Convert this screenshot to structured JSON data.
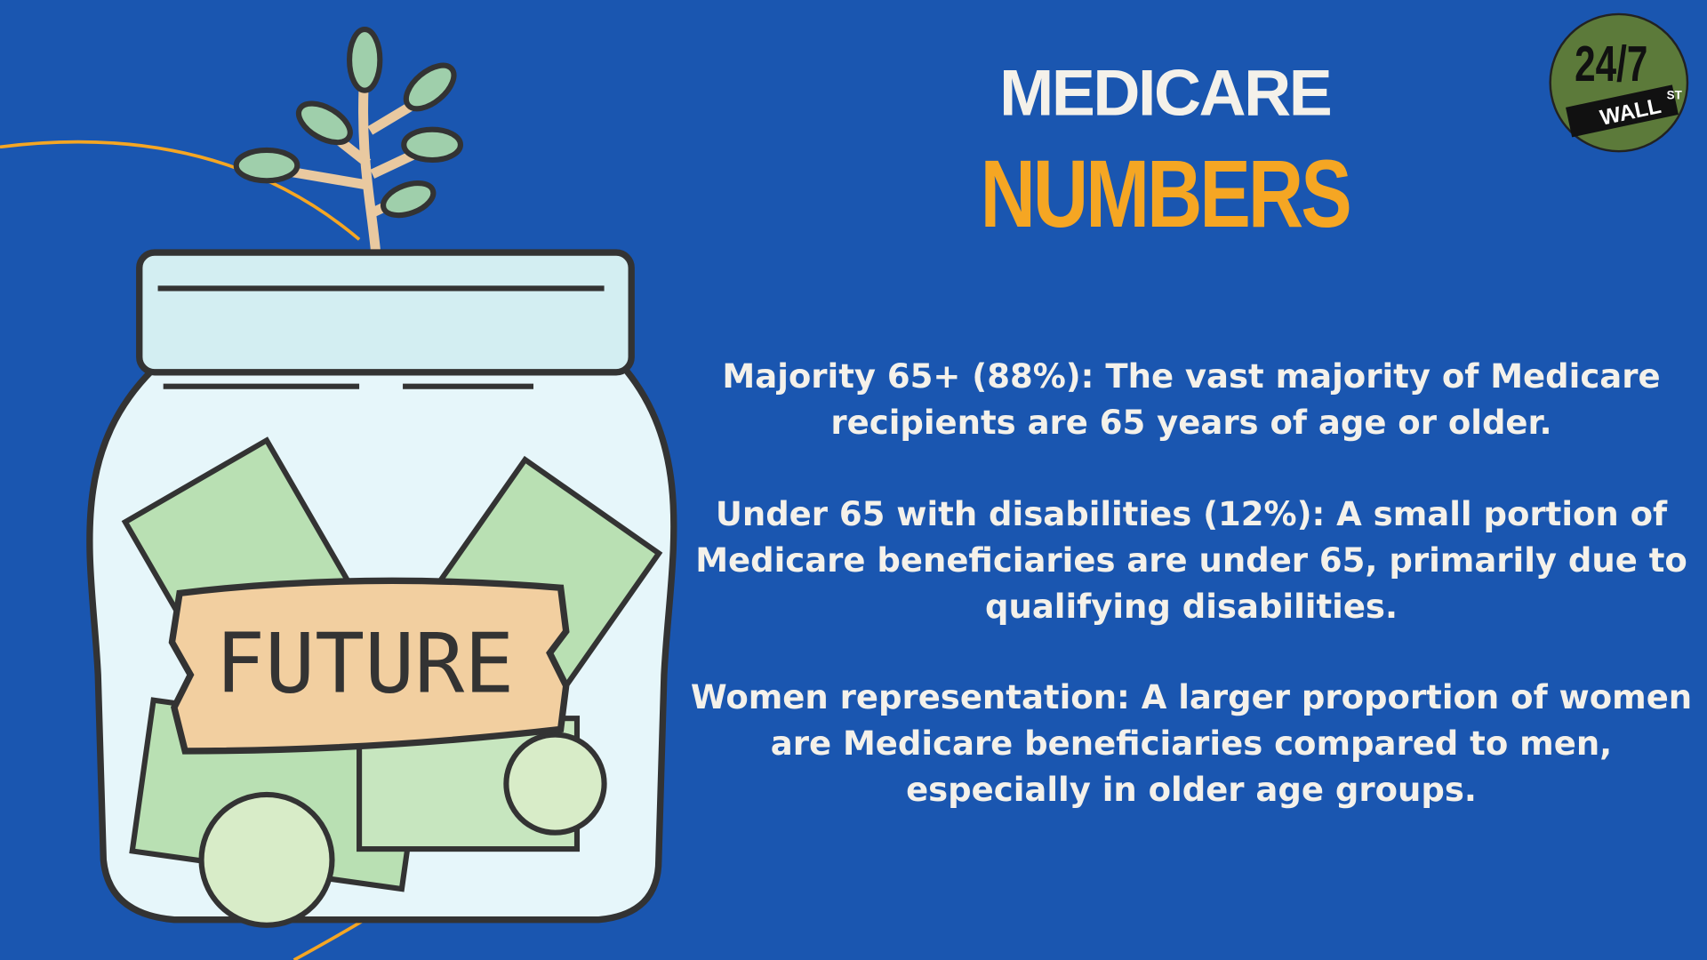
{
  "header": {
    "title_line1": "MEDICARE",
    "title_line2": "NUMBERS"
  },
  "logo": {
    "number": "24/7",
    "word": "WALL",
    "suffix": "ST"
  },
  "illustration": {
    "label": "FUTURE"
  },
  "paragraphs": [
    "Majority 65+ (88%): The vast majority of Medicare recipients are 65 years of age or older.",
    "Under 65 with disabilities (12%): A small portion of Medicare beneficiaries are under 65, primarily due to qualifying disabilities.",
    "Women representation: A larger proportion of women are Medicare beneficiaries compared to men, especially in older age groups."
  ]
}
